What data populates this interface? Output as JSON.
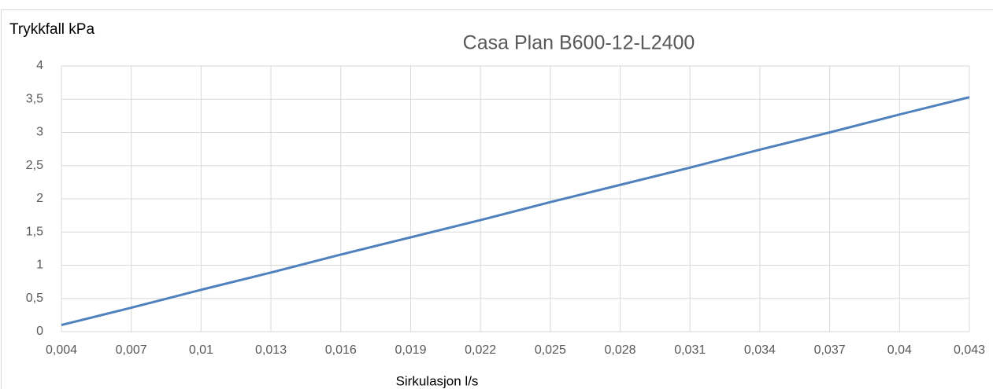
{
  "chart_data": {
    "type": "line",
    "title": "Casa Plan B600-12-L2400",
    "y_axis_label": "Trykkfall kPa",
    "x_axis_label": "Sirkulasjon l/s",
    "x": [
      0.004,
      0.007,
      0.01,
      0.013,
      0.016,
      0.019,
      0.022,
      0.025,
      0.028,
      0.031,
      0.034,
      0.037,
      0.04,
      0.043
    ],
    "series": [
      {
        "name": "Trykkfall",
        "color": "#4f81bd",
        "values": [
          0.1,
          0.36,
          0.63,
          0.89,
          1.16,
          1.42,
          1.68,
          1.95,
          2.21,
          2.47,
          2.74,
          3.0,
          3.27,
          3.53
        ]
      }
    ],
    "xlim": [
      0.004,
      0.043
    ],
    "xticks": [
      {
        "value": 0.004,
        "label": "0,004"
      },
      {
        "value": 0.007,
        "label": "0,007"
      },
      {
        "value": 0.01,
        "label": "0,01"
      },
      {
        "value": 0.013,
        "label": "0,013"
      },
      {
        "value": 0.016,
        "label": "0,016"
      },
      {
        "value": 0.019,
        "label": "0,019"
      },
      {
        "value": 0.022,
        "label": "0,022"
      },
      {
        "value": 0.025,
        "label": "0,025"
      },
      {
        "value": 0.028,
        "label": "0,028"
      },
      {
        "value": 0.031,
        "label": "0,031"
      },
      {
        "value": 0.034,
        "label": "0,034"
      },
      {
        "value": 0.037,
        "label": "0,037"
      },
      {
        "value": 0.04,
        "label": "0,04"
      },
      {
        "value": 0.043,
        "label": "0,043"
      }
    ],
    "ylim": [
      0,
      4
    ],
    "yticks": [
      0,
      {
        "value": 0.5,
        "label": "0,5"
      },
      1,
      {
        "value": 1.5,
        "label": "1,5"
      },
      2,
      {
        "value": 2.5,
        "label": "2,5"
      },
      3,
      {
        "value": 3.5,
        "label": "3,5"
      },
      4
    ],
    "grid": true
  }
}
